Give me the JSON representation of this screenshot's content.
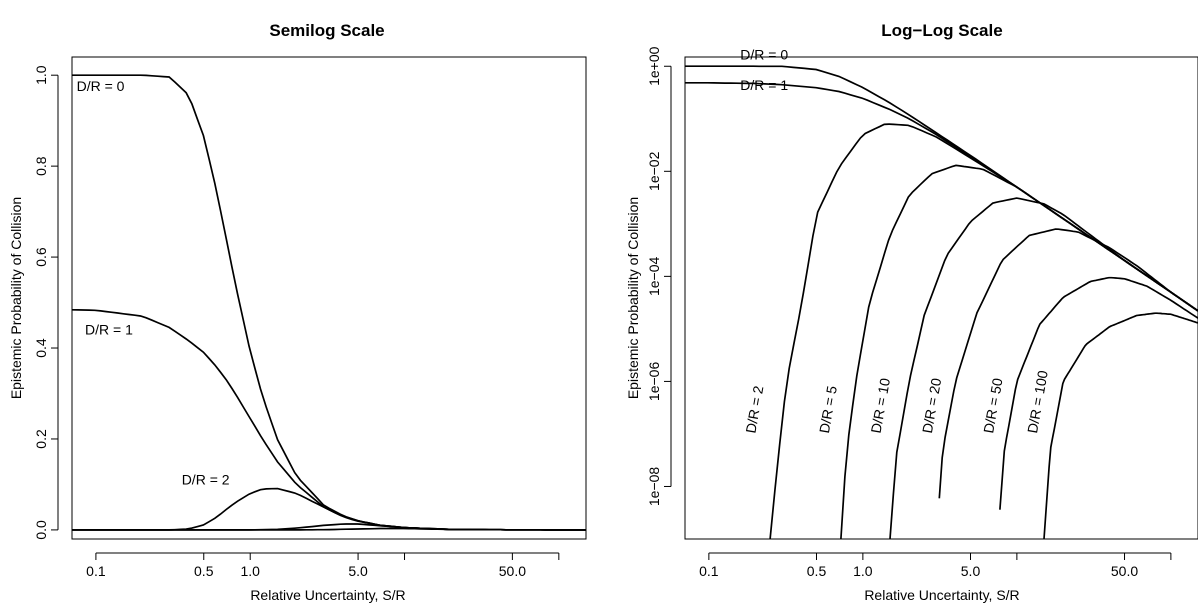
{
  "chart_data": [
    {
      "type": "line",
      "title": "Semilog Scale",
      "xlabel": "Relative Uncertainty, S/R",
      "ylabel": "Epistemic Probability of Collision",
      "x_scale": "log",
      "y_scale": "linear",
      "xlim": [
        0.07,
        150
      ],
      "ylim": [
        -0.02,
        1.04
      ],
      "x_ticks": [
        0.1,
        0.5,
        1.0,
        5.0,
        50.0
      ],
      "x_tick_labels": [
        "0.1",
        "0.5",
        "1.0",
        "5.0",
        "50.0"
      ],
      "x_minor_ticks": [
        10,
        100
      ],
      "y_ticks": [
        0.0,
        0.2,
        0.4,
        0.6,
        0.8,
        1.0
      ],
      "y_tick_labels": [
        "0.0",
        "0.2",
        "0.4",
        "0.6",
        "0.8",
        "1.0"
      ],
      "grid": false,
      "series": [
        {
          "name": "D/R = 0",
          "x": [
            0.07,
            0.1,
            0.2,
            0.3,
            0.4,
            0.5,
            0.6,
            0.7,
            0.8,
            1.0,
            1.2,
            1.5,
            2,
            3,
            4,
            5,
            7,
            10,
            20,
            50,
            150
          ],
          "y": [
            1.0,
            1.0,
            1.0,
            0.996,
            0.956,
            0.865,
            0.751,
            0.64,
            0.542,
            0.393,
            0.294,
            0.199,
            0.118,
            0.054,
            0.031,
            0.02,
            0.01,
            0.005,
            0.001,
            0.0002,
            0.0
          ]
        },
        {
          "name": "D/R = 1",
          "x": [
            0.07,
            0.1,
            0.2,
            0.3,
            0.4,
            0.5,
            0.6,
            0.7,
            0.8,
            1.0,
            1.2,
            1.5,
            2,
            3,
            4,
            5,
            7,
            10,
            20,
            50,
            150
          ],
          "y": [
            0.484,
            0.483,
            0.47,
            0.445,
            0.416,
            0.39,
            0.36,
            0.33,
            0.3,
            0.245,
            0.2,
            0.15,
            0.1,
            0.05,
            0.029,
            0.019,
            0.01,
            0.005,
            0.001,
            0.0002,
            0.0
          ]
        },
        {
          "name": "D/R = 2",
          "x": [
            0.07,
            0.3,
            0.4,
            0.5,
            0.6,
            0.7,
            0.8,
            1.0,
            1.2,
            1.5,
            2,
            3,
            4,
            5,
            7,
            10,
            20,
            50,
            150
          ],
          "y": [
            0.0,
            0.0,
            0.002,
            0.011,
            0.027,
            0.045,
            0.06,
            0.08,
            0.09,
            0.091,
            0.08,
            0.05,
            0.03,
            0.02,
            0.01,
            0.005,
            0.001,
            0.0002,
            0.0
          ]
        },
        {
          "name": "D/R = 5",
          "x": [
            0.07,
            1.0,
            1.5,
            2,
            3,
            4,
            5,
            7,
            10,
            20,
            50,
            150
          ],
          "y": [
            0.0,
            0.0,
            0.001,
            0.004,
            0.01,
            0.013,
            0.013,
            0.009,
            0.005,
            0.001,
            0.0002,
            0.0
          ]
        },
        {
          "name": "D/R = 10",
          "x": [
            0.07,
            2,
            3,
            5,
            7,
            10,
            20,
            50,
            150
          ],
          "y": [
            0.0,
            0.0,
            0.0005,
            0.002,
            0.003,
            0.003,
            0.001,
            0.0002,
            0.0
          ]
        }
      ],
      "annotations": [
        {
          "text": "D/R = 0",
          "x": 0.075,
          "y": 0.965
        },
        {
          "text": "D/R = 1",
          "x": 0.085,
          "y": 0.43
        },
        {
          "text": "D/R = 2",
          "x": 0.36,
          "y": 0.1
        }
      ]
    },
    {
      "type": "line",
      "title": "Log−Log Scale",
      "xlabel": "Relative Uncertainty, S/R",
      "ylabel": "Epistemic Probability of Collision",
      "x_scale": "log",
      "y_scale": "log",
      "xlim": [
        0.07,
        150
      ],
      "ylim": [
        1e-09,
        1.5
      ],
      "x_ticks": [
        0.1,
        0.5,
        1.0,
        5.0,
        50.0
      ],
      "x_tick_labels": [
        "0.1",
        "0.5",
        "1.0",
        "5.0",
        "50.0"
      ],
      "x_minor_ticks": [
        10,
        100
      ],
      "y_ticks": [
        1,
        0.01,
        0.0001,
        1e-06,
        1e-08
      ],
      "y_tick_labels": [
        "1e+00",
        "1e−02",
        "1e−04",
        "1e−06",
        "1e−08"
      ],
      "grid": false,
      "series": [
        {
          "name": "D/R = 0",
          "x": [
            0.07,
            0.1,
            0.2,
            0.3,
            0.5,
            0.7,
            1.0,
            1.5,
            2,
            3,
            5,
            10,
            20,
            50,
            100,
            150
          ],
          "y": [
            1.0,
            1.0,
            1.0,
            0.996,
            0.865,
            0.64,
            0.393,
            0.2,
            0.118,
            0.054,
            0.02,
            0.005,
            0.00125,
            0.0002,
            5e-05,
            2.2e-05
          ]
        },
        {
          "name": "D/R = 1",
          "x": [
            0.07,
            0.1,
            0.2,
            0.3,
            0.5,
            0.7,
            1.0,
            1.5,
            2,
            3,
            5,
            10,
            20,
            50,
            100,
            150
          ],
          "y": [
            0.484,
            0.483,
            0.47,
            0.445,
            0.39,
            0.33,
            0.245,
            0.15,
            0.1,
            0.05,
            0.019,
            0.005,
            0.00125,
            0.0002,
            5e-05,
            2.2e-05
          ]
        },
        {
          "name": "D/R = 2",
          "x": [
            0.25,
            0.28,
            0.32,
            0.4,
            0.5,
            0.7,
            1.0,
            1.4,
            2,
            3,
            5,
            10,
            20,
            50,
            100,
            150
          ],
          "y": [
            1e-09,
            3e-08,
            1e-06,
            3e-05,
            0.0015,
            0.012,
            0.05,
            0.08,
            0.075,
            0.045,
            0.018,
            0.005,
            0.00125,
            0.0002,
            5e-05,
            2.2e-05
          ]
        },
        {
          "name": "D/R = 5",
          "x": [
            0.72,
            0.78,
            0.9,
            1.1,
            1.5,
            2.0,
            2.8,
            4,
            6,
            10,
            20,
            50,
            100,
            150
          ],
          "y": [
            1e-09,
            4e-08,
            1e-06,
            3e-05,
            0.0006,
            0.0035,
            0.009,
            0.013,
            0.011,
            0.005,
            0.00125,
            0.0002,
            5e-05,
            2.2e-05
          ]
        },
        {
          "name": "D/R = 10",
          "x": [
            1.5,
            1.65,
            2.0,
            2.5,
            3.5,
            5,
            7,
            10,
            15,
            20,
            50,
            100,
            150
          ],
          "y": [
            1e-09,
            4e-08,
            1e-06,
            1.8e-05,
            0.00025,
            0.0011,
            0.0025,
            0.0031,
            0.0024,
            0.0015,
            0.0002,
            5e-05,
            2.2e-05
          ]
        },
        {
          "name": "D/R = 20",
          "x": [
            3.0,
            3.3,
            4,
            5.5,
            8,
            12,
            18,
            25,
            40,
            60,
            100,
            150
          ],
          "y": [
            1e-09,
            5e-08,
            1e-06,
            2e-05,
            0.0002,
            0.0006,
            0.0008,
            0.0007,
            0.00035,
            0.00016,
            5e-05,
            2.2e-05
          ]
        },
        {
          "name": "D/R = 50",
          "x": [
            7.5,
            8.3,
            10,
            14,
            20,
            30,
            40,
            50,
            70,
            100,
            150
          ],
          "y": [
            1e-09,
            5e-08,
            1e-06,
            1.2e-05,
            4e-05,
            8e-05,
            9.5e-05,
            9e-05,
            6.5e-05,
            3.5e-05,
            1.6e-05
          ]
        },
        {
          "name": "D/R = 100",
          "x": [
            15,
            16.5,
            20,
            28,
            40,
            60,
            80,
            100,
            150
          ],
          "y": [
            1e-09,
            5e-08,
            1e-06,
            5e-06,
            1.1e-05,
            1.8e-05,
            2e-05,
            1.9e-05,
            1.3e-05
          ]
        }
      ],
      "annotations": [
        {
          "text": "D/R = 0",
          "x": 0.16,
          "y": 1.35,
          "rotation": 0
        },
        {
          "text": "D/R = 1",
          "x": 0.16,
          "y": 0.35,
          "rotation": 0
        },
        {
          "text": "D/R = 2",
          "x": 0.2,
          "y": 1e-07,
          "rotation": -80
        },
        {
          "text": "D/R = 5",
          "x": 0.6,
          "y": 1e-07,
          "rotation": -80
        },
        {
          "text": "D/R = 10",
          "x": 1.3,
          "y": 1e-07,
          "rotation": -80
        },
        {
          "text": "D/R = 20",
          "x": 2.8,
          "y": 1e-07,
          "rotation": -80
        },
        {
          "text": "D/R = 50",
          "x": 7.0,
          "y": 1e-07,
          "rotation": -80
        },
        {
          "text": "D/R = 100",
          "x": 13.5,
          "y": 1e-07,
          "rotation": -80
        }
      ]
    }
  ]
}
